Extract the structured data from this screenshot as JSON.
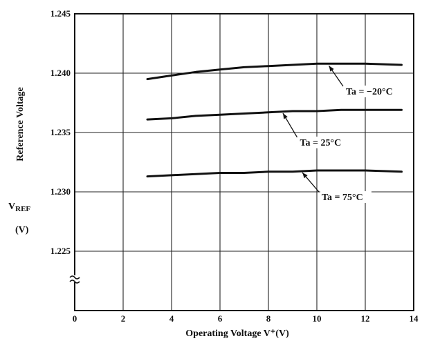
{
  "chart_data": {
    "type": "line",
    "xlabel": "Operating Voltage V⁺(V)",
    "ylabel": "Reference Voltage",
    "ylabel_symbol": "VREF",
    "ylabel_symbol_main": "V",
    "ylabel_symbol_sub": "REF",
    "ylabel_unit": "(V)",
    "xlim": [
      0,
      14
    ],
    "ylim": [
      1.225,
      1.245
    ],
    "y_axis_broken": true,
    "x_ticks": [
      "0",
      "2",
      "4",
      "6",
      "8",
      "10",
      "12",
      "14"
    ],
    "y_ticks": [
      "1.225",
      "1.230",
      "1.235",
      "1.240",
      "1.245"
    ],
    "grid": true,
    "series": [
      {
        "name": "Ta = −20°C",
        "x": [
          3,
          4,
          5,
          6,
          7,
          8,
          9,
          10,
          11,
          12,
          13.5
        ],
        "y": [
          1.2395,
          1.2398,
          1.2401,
          1.2403,
          1.2405,
          1.2406,
          1.2407,
          1.2408,
          1.2408,
          1.2408,
          1.2407
        ]
      },
      {
        "name": "Ta = 25°C",
        "x": [
          3,
          4,
          5,
          6,
          7,
          8,
          9,
          10,
          11,
          12,
          13.5
        ],
        "y": [
          1.2361,
          1.2362,
          1.2364,
          1.2365,
          1.2366,
          1.2367,
          1.2368,
          1.2368,
          1.2369,
          1.2369,
          1.2369
        ]
      },
      {
        "name": "Ta = 75°C",
        "x": [
          3,
          4,
          5,
          6,
          7,
          8,
          9,
          10,
          11,
          12,
          13.5
        ],
        "y": [
          1.2313,
          1.2314,
          1.2315,
          1.2316,
          1.2316,
          1.2317,
          1.2317,
          1.2318,
          1.2318,
          1.2318,
          1.2317
        ]
      }
    ]
  },
  "annotations": [
    {
      "text": "Ta = −20°C",
      "x": 11.2,
      "y": 1.2382,
      "arrow_to_x": 10.5,
      "arrow_to_y": 1.2408
    },
    {
      "text": "Ta = 25°C",
      "x": 9.3,
      "y": 1.2339,
      "arrow_to_x": 8.6,
      "arrow_to_y": 1.2368
    },
    {
      "text": "Ta = 75°C",
      "x": 10.2,
      "y": 1.2293,
      "arrow_to_x": 9.4,
      "arrow_to_y": 1.2318
    }
  ]
}
